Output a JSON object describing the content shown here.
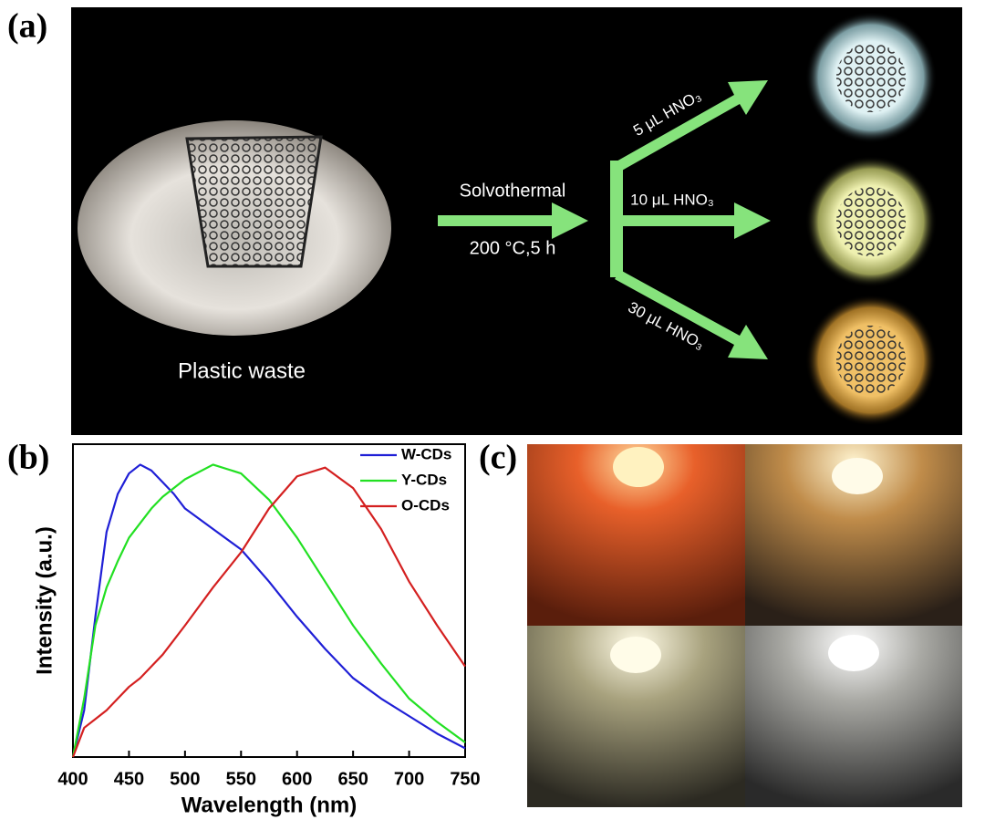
{
  "panel_a": {
    "label": "(a)",
    "source_caption": "Plastic waste",
    "step_top": "Solvothermal",
    "step_bottom": "200 °C,5 h",
    "branches": [
      "5 μL HNO₃",
      "10 μL HNO₃",
      "30 μL HNO₃"
    ]
  },
  "chart_data": {
    "type": "line",
    "panel_label": "(b)",
    "x_label": "Wavelength (nm)",
    "y_label": "Intensity (a.u.)",
    "x": [
      400,
      410,
      420,
      430,
      440,
      450,
      460,
      470,
      480,
      490,
      500,
      525,
      550,
      575,
      600,
      625,
      650,
      675,
      700,
      725,
      750
    ],
    "series": [
      {
        "name": "W-CDs",
        "color": "#1f1fd6",
        "values": [
          0,
          0.16,
          0.48,
          0.77,
          0.9,
          0.97,
          1.0,
          0.98,
          0.94,
          0.9,
          0.85,
          0.78,
          0.71,
          0.6,
          0.48,
          0.37,
          0.27,
          0.2,
          0.14,
          0.08,
          0.03
        ]
      },
      {
        "name": "Y-CDs",
        "color": "#22e022",
        "values": [
          0,
          0.2,
          0.45,
          0.58,
          0.67,
          0.75,
          0.8,
          0.85,
          0.89,
          0.92,
          0.95,
          1.0,
          0.97,
          0.88,
          0.75,
          0.6,
          0.45,
          0.32,
          0.2,
          0.12,
          0.05
        ]
      },
      {
        "name": "O-CDs",
        "color": "#d42020",
        "values": [
          0,
          0.1,
          0.13,
          0.16,
          0.2,
          0.24,
          0.27,
          0.31,
          0.35,
          0.4,
          0.45,
          0.58,
          0.7,
          0.85,
          0.96,
          0.99,
          0.92,
          0.78,
          0.6,
          0.45,
          0.31
        ]
      }
    ],
    "xlim": [
      400,
      750
    ],
    "xticks": [
      400,
      450,
      500,
      550,
      600,
      650,
      700,
      750
    ],
    "ylim": [
      0,
      1.07
    ],
    "legend": "top-right"
  },
  "panel_c": {
    "label": "(c)"
  }
}
